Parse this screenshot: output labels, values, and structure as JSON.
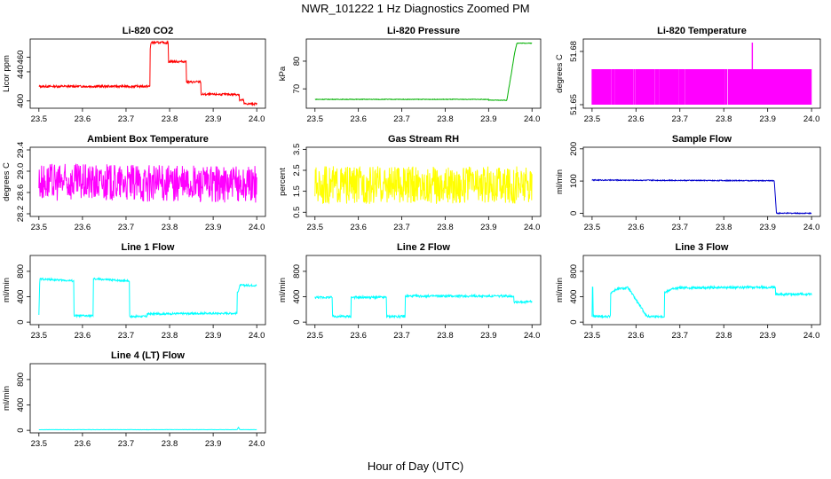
{
  "page": {
    "title": "NWR_101222  1 Hz Diagnostics Zoomed PM",
    "xlabel": "Hour of Day (UTC)"
  },
  "chart_data": [
    {
      "type": "line",
      "title": "Li-820 CO2",
      "ylabel": "Licor ppm",
      "color": "#ff0000",
      "xlim": [
        23.48,
        24.02
      ],
      "ylim": [
        390,
        485
      ],
      "xticks": [
        "23.5",
        "23.6",
        "23.7",
        "23.8",
        "23.9",
        "24.0"
      ],
      "xtick_values": [
        23.5,
        23.6,
        23.7,
        23.8,
        23.9,
        24.0
      ],
      "yticks": [
        "400",
        "440",
        "460"
      ],
      "ytick_values": [
        400,
        440,
        460
      ],
      "x": [
        23.5,
        23.755,
        23.755,
        23.757,
        23.797,
        23.797,
        23.838,
        23.838,
        23.872,
        23.872,
        23.96,
        23.96,
        23.97,
        23.97,
        24.0
      ],
      "y": [
        420,
        420,
        468,
        480,
        480,
        454,
        454,
        426,
        426,
        409,
        409,
        401,
        401,
        396,
        396
      ],
      "noise": 1.5
    },
    {
      "type": "line",
      "title": "Li-820 Pressure",
      "ylabel": "kPa",
      "color": "#00b000",
      "xlim": [
        23.48,
        24.02
      ],
      "ylim": [
        63,
        88
      ],
      "xticks": [
        "23.5",
        "23.6",
        "23.7",
        "23.8",
        "23.9",
        "24.0"
      ],
      "xtick_values": [
        23.5,
        23.6,
        23.7,
        23.8,
        23.9,
        24.0
      ],
      "yticks": [
        "70",
        "80"
      ],
      "ytick_values": [
        70,
        80
      ],
      "x": [
        23.5,
        23.9,
        23.9,
        23.942,
        23.955,
        23.96,
        23.965,
        24.0
      ],
      "y": [
        66.2,
        66.2,
        65.9,
        65.9,
        78,
        83,
        86.5,
        86.5
      ],
      "noise": 0.1
    },
    {
      "type": "band",
      "title": "Li-820 Temperature",
      "ylabel": "degrees C",
      "color": "#ff00ff",
      "xlim": [
        23.48,
        24.02
      ],
      "ylim": [
        51.648,
        51.687
      ],
      "xticks": [
        "23.5",
        "23.6",
        "23.7",
        "23.8",
        "23.9",
        "24.0"
      ],
      "xtick_values": [
        23.5,
        23.6,
        23.7,
        23.8,
        23.9,
        24.0
      ],
      "yticks": [
        "51.65",
        "51.68"
      ],
      "ytick_values": [
        51.65,
        51.68
      ],
      "low": 51.65,
      "high": 51.67,
      "spike_x": 23.865,
      "spike_y": 51.685
    },
    {
      "type": "line",
      "title": "Ambient Box Temperature",
      "ylabel": "degrees C",
      "color": "#ff00ff",
      "xlim": [
        23.48,
        24.02
      ],
      "ylim": [
        28.15,
        29.45
      ],
      "xticks": [
        "23.5",
        "23.6",
        "23.7",
        "23.8",
        "23.9",
        "24.0"
      ],
      "xtick_values": [
        23.5,
        23.6,
        23.7,
        23.8,
        23.9,
        24.0
      ],
      "yticks": [
        "28.2",
        "28.6",
        "29.0",
        "29.4"
      ],
      "ytick_values": [
        28.2,
        28.6,
        29.0,
        29.4
      ],
      "x": [
        23.5,
        24.0
      ],
      "y": [
        28.8,
        28.75
      ],
      "noise": 0.35
    },
    {
      "type": "line",
      "title": "Gas Stream RH",
      "ylabel": "percent",
      "color": "#ffff00",
      "xlim": [
        23.48,
        24.02
      ],
      "ylim": [
        0.3,
        3.6
      ],
      "xticks": [
        "23.5",
        "23.6",
        "23.7",
        "23.8",
        "23.9",
        "24.0"
      ],
      "xtick_values": [
        23.5,
        23.6,
        23.7,
        23.8,
        23.9,
        24.0
      ],
      "yticks": [
        "0.5",
        "1.5",
        "2.5",
        "3.5"
      ],
      "ytick_values": [
        0.5,
        1.5,
        2.5,
        3.5
      ],
      "x": [
        23.5,
        24.0
      ],
      "y": [
        1.8,
        1.8
      ],
      "noise": 0.9
    },
    {
      "type": "line",
      "title": "Sample Flow",
      "ylabel": "ml/min",
      "color": "#0000cc",
      "xlim": [
        23.48,
        24.02
      ],
      "ylim": [
        -10,
        205
      ],
      "xticks": [
        "23.5",
        "23.6",
        "23.7",
        "23.8",
        "23.9",
        "24.0"
      ],
      "xtick_values": [
        23.5,
        23.6,
        23.7,
        23.8,
        23.9,
        24.0
      ],
      "yticks": [
        "0",
        "100",
        "200"
      ],
      "ytick_values": [
        0,
        100,
        200
      ],
      "x": [
        23.5,
        23.915,
        23.915,
        23.92,
        24.0
      ],
      "y": [
        103,
        101,
        101,
        0,
        0
      ],
      "noise": 1.5
    },
    {
      "type": "line",
      "title": "Line 1 Flow",
      "ylabel": "ml/min",
      "color": "#00ffff",
      "xlim": [
        23.48,
        24.02
      ],
      "ylim": [
        -40,
        1050
      ],
      "xticks": [
        "23.5",
        "23.6",
        "23.7",
        "23.8",
        "23.9",
        "24.0"
      ],
      "xtick_values": [
        23.5,
        23.6,
        23.7,
        23.8,
        23.9,
        24.0
      ],
      "yticks": [
        "0",
        "400",
        "800"
      ],
      "ytick_values": [
        0,
        400,
        800
      ],
      "x": [
        23.5,
        23.502,
        23.58,
        23.58,
        23.625,
        23.625,
        23.708,
        23.708,
        23.748,
        23.748,
        23.955,
        23.955,
        23.962,
        24.0
      ],
      "y": [
        100,
        680,
        650,
        100,
        100,
        680,
        650,
        90,
        90,
        130,
        140,
        450,
        580,
        580
      ],
      "noise": 15
    },
    {
      "type": "line",
      "title": "Line 2 Flow",
      "ylabel": "ml/min",
      "color": "#00ffff",
      "xlim": [
        23.48,
        24.02
      ],
      "ylim": [
        -40,
        1050
      ],
      "xticks": [
        "23.5",
        "23.6",
        "23.7",
        "23.8",
        "23.9",
        "24.0"
      ],
      "xtick_values": [
        23.5,
        23.6,
        23.7,
        23.8,
        23.9,
        24.0
      ],
      "yticks": [
        "0",
        "400",
        "800"
      ],
      "ytick_values": [
        0,
        400,
        800
      ],
      "x": [
        23.5,
        23.54,
        23.54,
        23.583,
        23.583,
        23.665,
        23.665,
        23.708,
        23.708,
        23.958,
        23.958,
        24.0
      ],
      "y": [
        390,
        390,
        90,
        90,
        390,
        390,
        90,
        90,
        410,
        410,
        320,
        320
      ],
      "noise": 18
    },
    {
      "type": "line",
      "title": "Line 3 Flow",
      "ylabel": "ml/min",
      "color": "#00ffff",
      "xlim": [
        23.48,
        24.02
      ],
      "ylim": [
        -40,
        1050
      ],
      "xticks": [
        "23.5",
        "23.6",
        "23.7",
        "23.8",
        "23.9",
        "24.0"
      ],
      "xtick_values": [
        23.5,
        23.6,
        23.7,
        23.8,
        23.9,
        24.0
      ],
      "yticks": [
        "0",
        "400",
        "800"
      ],
      "ytick_values": [
        0,
        400,
        800
      ],
      "x": [
        23.5,
        23.5,
        23.502,
        23.502,
        23.542,
        23.542,
        23.556,
        23.582,
        23.582,
        23.625,
        23.625,
        23.665,
        23.665,
        23.68,
        23.702,
        23.918,
        23.918,
        24.0
      ],
      "y": [
        80,
        560,
        560,
        90,
        90,
        460,
        520,
        540,
        540,
        90,
        90,
        90,
        460,
        520,
        540,
        550,
        440,
        440
      ],
      "noise": 18
    },
    {
      "type": "line",
      "title": "Line 4 (LT) Flow",
      "ylabel": "ml/min",
      "color": "#00ffff",
      "xlim": [
        23.48,
        24.02
      ],
      "ylim": [
        -40,
        1050
      ],
      "xticks": [
        "23.5",
        "23.6",
        "23.7",
        "23.8",
        "23.9",
        "24.0"
      ],
      "xtick_values": [
        23.5,
        23.6,
        23.7,
        23.8,
        23.9,
        24.0
      ],
      "yticks": [
        "0",
        "400",
        "800"
      ],
      "ytick_values": [
        0,
        400,
        800
      ],
      "x": [
        23.5,
        23.955,
        23.958,
        23.961,
        24.0
      ],
      "y": [
        10,
        10,
        50,
        10,
        10
      ],
      "noise": 2
    }
  ]
}
